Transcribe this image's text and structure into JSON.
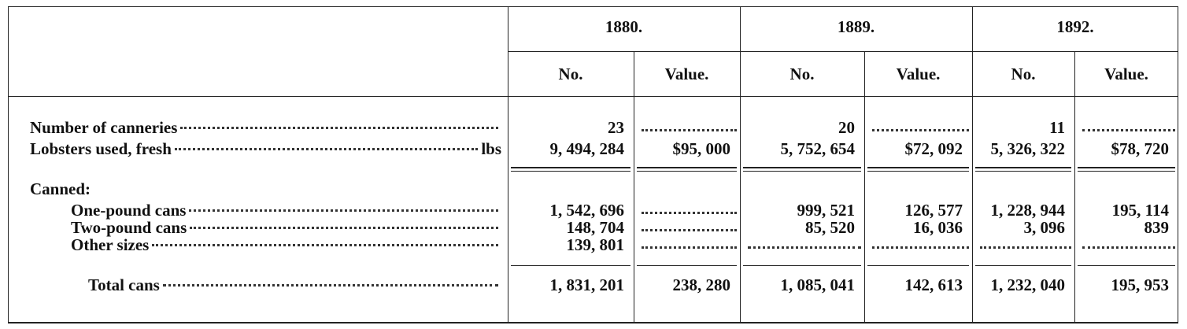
{
  "table": {
    "years": [
      "1880.",
      "1889.",
      "1892."
    ],
    "subheaders": [
      "No.",
      "Value.",
      "No.",
      "Value.",
      "No.",
      "Value."
    ],
    "rows": [
      {
        "label": "Number of canneries",
        "cells": [
          "23",
          null,
          "20",
          null,
          "11",
          null
        ]
      },
      {
        "label": "Lobsters used, fresh",
        "unit": "lbs",
        "cells": [
          "9, 494, 284",
          "$95, 000",
          "5, 752, 654",
          "$72, 092",
          "5, 326, 322",
          "$78, 720"
        ]
      }
    ],
    "section": "Canned:",
    "canned_rows": [
      {
        "label": "One-pound cans",
        "cells": [
          "1, 542, 696",
          null,
          "999, 521",
          "126, 577",
          "1, 228, 944",
          "195, 114"
        ]
      },
      {
        "label": "Two-pound cans",
        "cells": [
          "148, 704",
          null,
          "85, 520",
          "16, 036",
          "3, 096",
          "839"
        ]
      },
      {
        "label": "Other sizes",
        "cells": [
          "139, 801",
          null,
          null,
          null,
          null,
          null
        ]
      }
    ],
    "total": {
      "label": "Total cans",
      "cells": [
        "1, 831, 201",
        "238, 280",
        "1, 085, 041",
        "142, 613",
        "1, 232, 040",
        "195, 953"
      ]
    }
  }
}
